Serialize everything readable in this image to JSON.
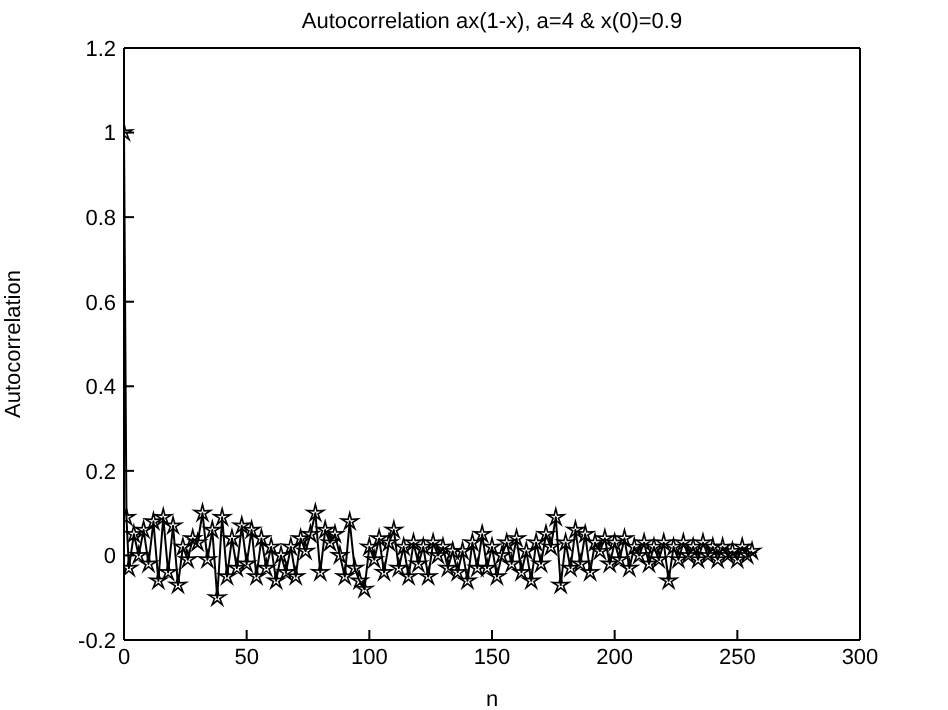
{
  "chart_data": {
    "type": "line",
    "title": "Autocorrelation  ax(1-x), a=4 & x(0)=0.9",
    "xlabel": "n",
    "ylabel": "Autocorrelation",
    "x": [
      0,
      1,
      2,
      4,
      6,
      8,
      10,
      12,
      14,
      16,
      18,
      20,
      22,
      24,
      26,
      28,
      30,
      32,
      34,
      36,
      38,
      40,
      42,
      44,
      46,
      48,
      50,
      52,
      54,
      56,
      58,
      60,
      62,
      64,
      66,
      68,
      70,
      72,
      74,
      76,
      78,
      80,
      82,
      84,
      86,
      88,
      90,
      92,
      94,
      96,
      98,
      100,
      102,
      104,
      106,
      108,
      110,
      112,
      114,
      116,
      118,
      120,
      122,
      124,
      126,
      128,
      130,
      132,
      134,
      136,
      138,
      140,
      142,
      144,
      146,
      148,
      150,
      152,
      154,
      156,
      158,
      160,
      162,
      164,
      166,
      168,
      170,
      172,
      174,
      176,
      178,
      180,
      182,
      184,
      186,
      188,
      190,
      192,
      194,
      196,
      198,
      200,
      202,
      204,
      206,
      208,
      210,
      212,
      214,
      216,
      218,
      220,
      222,
      224,
      226,
      228,
      230,
      232,
      234,
      236,
      238,
      240,
      242,
      244,
      246,
      248,
      250,
      252,
      254,
      256
    ],
    "series": [
      {
        "color": "#000000",
        "values": [
          1,
          0.09,
          -0.03,
          0.05,
          0.0,
          0.06,
          -0.02,
          0.08,
          -0.06,
          0.09,
          -0.04,
          0.07,
          -0.07,
          0.02,
          -0.01,
          0.04,
          0.03,
          0.1,
          -0.01,
          0.06,
          -0.1,
          0.09,
          -0.05,
          0.04,
          -0.03,
          0.07,
          -0.02,
          0.06,
          -0.05,
          0.04,
          -0.03,
          0.02,
          -0.06,
          0.0,
          -0.04,
          0.02,
          -0.05,
          0.04,
          0.01,
          0.05,
          0.1,
          -0.04,
          0.06,
          0.03,
          0.05,
          0.0,
          -0.05,
          0.08,
          -0.03,
          -0.06,
          -0.08,
          0.02,
          -0.01,
          0.04,
          -0.04,
          0.03,
          0.06,
          -0.03,
          0.02,
          -0.05,
          0.03,
          -0.02,
          0.02,
          -0.05,
          0.03,
          0.0,
          0.02,
          -0.03,
          0.01,
          -0.04,
          0.01,
          -0.06,
          0.03,
          -0.03,
          0.05,
          -0.03,
          0.02,
          -0.05,
          0.0,
          0.03,
          -0.02,
          0.04,
          -0.04,
          0.01,
          -0.06,
          0.03,
          -0.02,
          0.05,
          0.02,
          0.09,
          -0.07,
          0.03,
          -0.03,
          0.06,
          -0.02,
          0.05,
          -0.04,
          0.03,
          0.01,
          0.04,
          -0.02,
          0.03,
          -0.01,
          0.04,
          -0.03,
          0.02,
          0.0,
          0.03,
          -0.02,
          0.02,
          -0.01,
          0.03,
          -0.06,
          0.02,
          -0.01,
          0.03,
          0.0,
          0.02,
          -0.01,
          0.03,
          0.0,
          0.02,
          -0.01,
          0.02,
          0.0,
          0.01,
          -0.01,
          0.02,
          0.0,
          0.01
        ]
      }
    ],
    "xlim": [
      0,
      300
    ],
    "xticks": [
      0,
      50,
      100,
      150,
      200,
      250,
      300
    ],
    "ylim": [
      -0.2,
      1.2
    ],
    "yticks": [
      -0.2,
      0,
      0.2,
      0.4,
      0.6,
      0.8,
      1,
      1.2
    ],
    "grid": false,
    "legend": false,
    "marker": "star",
    "line_style": "solid"
  }
}
